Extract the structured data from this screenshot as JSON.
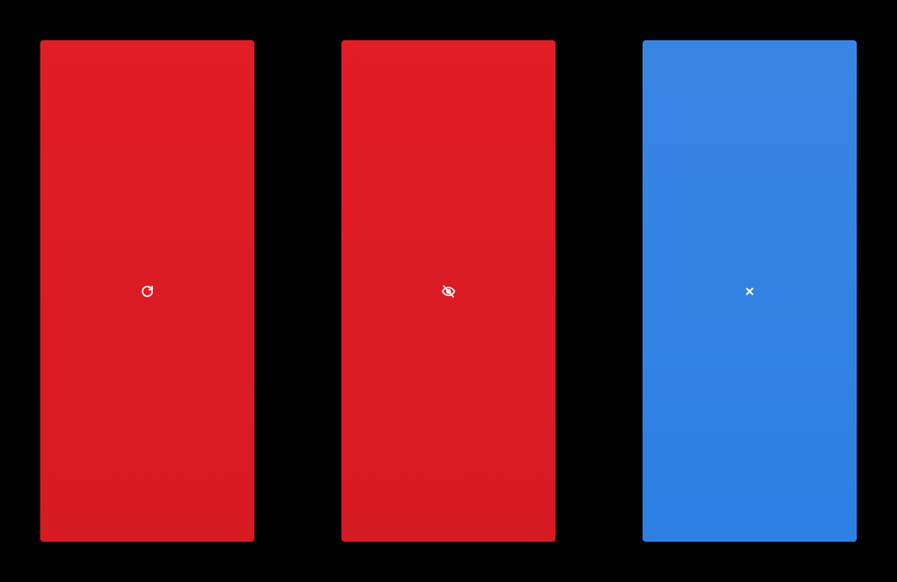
{
  "panels": [
    {
      "id": "reload",
      "icon": "reload-icon",
      "color_top": "#e11d25",
      "color_bottom": "#d61a22"
    },
    {
      "id": "hide",
      "icon": "eye-off-icon",
      "color_top": "#e11d25",
      "color_bottom": "#d61a22"
    },
    {
      "id": "close",
      "icon": "close-icon",
      "color_top": "#3886e4",
      "color_bottom": "#2c7fe3"
    }
  ],
  "colors": {
    "background": "#000000",
    "icon": "#ffffff"
  }
}
